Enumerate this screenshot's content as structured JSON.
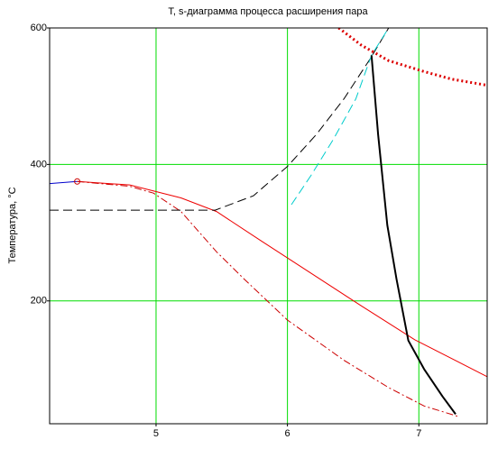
{
  "chart_data": {
    "type": "line",
    "title": "T, s-диаграмма процесса расширения пара",
    "y_label": "Температура, °C",
    "xlim": [
      4.19,
      7.52
    ],
    "ylim": [
      20,
      600
    ],
    "xticks": [
      5,
      6,
      7
    ],
    "yticks": [
      200,
      400,
      600
    ],
    "grid": true,
    "grid_color": "#00dd00",
    "series": [
      {
        "color": "#0000cc",
        "width": 1,
        "x": [
          4.19,
          4.4
        ],
        "values": [
          372,
          375
        ]
      },
      {
        "color": "#ee0000",
        "width": 1,
        "x": [
          4.4,
          4.8,
          5.19,
          5.46,
          5.8,
          6.0,
          6.56,
          6.97,
          7.52
        ],
        "values": [
          375,
          370,
          351,
          331,
          288,
          263,
          193,
          143,
          89
        ]
      },
      {
        "color": "#cc0000",
        "width": 1,
        "dash": "8,3,2,3",
        "x": [
          4.4,
          4.8,
          4.98,
          5.19,
          5.46,
          5.67,
          6.0,
          6.43,
          6.77,
          7.04,
          7.31
        ],
        "values": [
          375,
          368,
          358,
          331,
          272,
          232,
          172,
          113,
          73,
          46,
          30
        ]
      },
      {
        "color": "#000000",
        "width": 1,
        "dash": "10,5",
        "x": [
          4.19,
          5.45,
          5.74,
          6.0,
          6.22,
          6.43,
          6.63,
          6.77
        ],
        "values": [
          333,
          333,
          354,
          397,
          444,
          496,
          555,
          600
        ]
      },
      {
        "color": "#00cccc",
        "width": 1,
        "dash": "10,5",
        "x": [
          6.03,
          6.18,
          6.35,
          6.52,
          6.64,
          6.77
        ],
        "values": [
          341,
          384,
          437,
          496,
          560,
          600
        ]
      },
      {
        "color": "#000000",
        "width": 2,
        "x": [
          6.64,
          6.69,
          6.76,
          6.83,
          6.92,
          7.04,
          7.18,
          7.28
        ],
        "values": [
          560,
          444,
          311,
          232,
          142,
          100,
          60,
          34
        ]
      },
      {
        "color": "#dd0000",
        "width": 3,
        "dash": "2,3",
        "x": [
          6.39,
          6.56,
          6.77,
          7.04,
          7.25,
          7.52
        ],
        "values": [
          600,
          575,
          552,
          536,
          525,
          516
        ]
      },
      {
        "color": "#cc0000",
        "width": 1,
        "marker": "circle",
        "x": [
          4.4
        ],
        "values": [
          375
        ]
      }
    ]
  }
}
